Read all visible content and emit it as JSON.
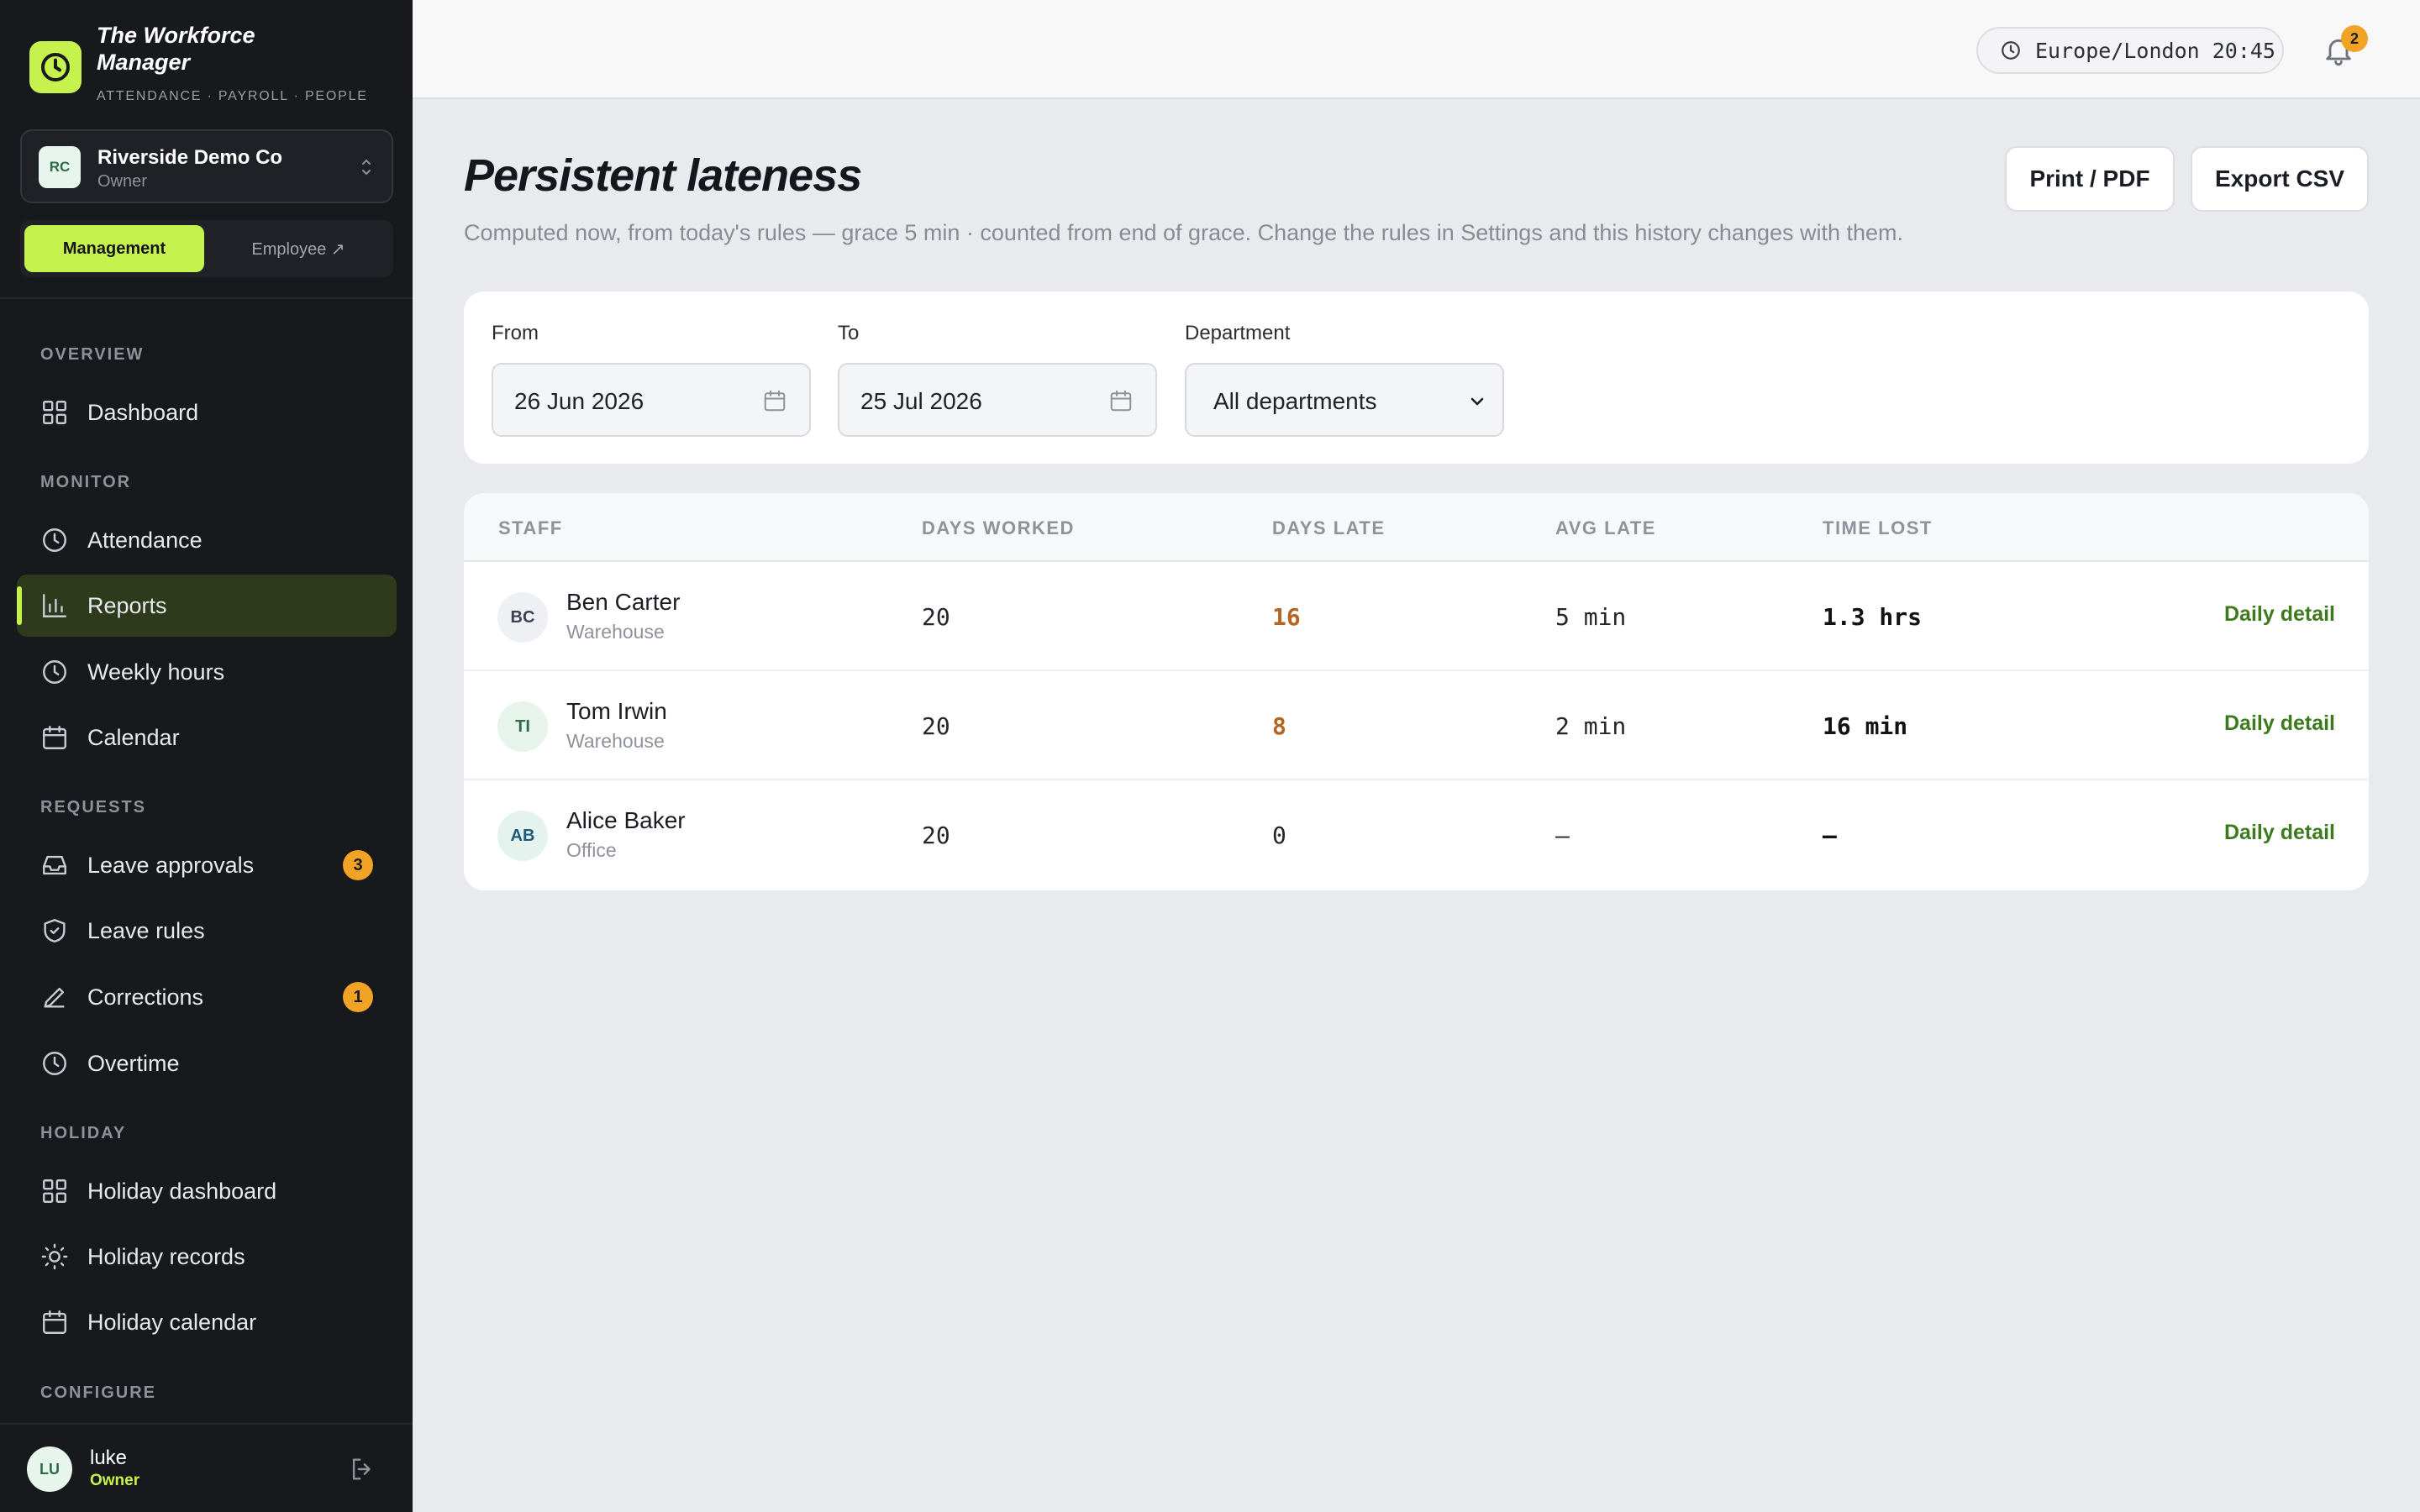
{
  "brand": {
    "title": "The Workforce Manager",
    "subtitle": "ATTENDANCE · PAYROLL · PEOPLE",
    "accent": "#c6f24e"
  },
  "org": {
    "initials": "RC",
    "name": "Riverside Demo Co",
    "role": "Owner"
  },
  "mode": {
    "management": "Management",
    "employee": "Employee ↗"
  },
  "nav": {
    "overview": "OVERVIEW",
    "dashboard": "Dashboard",
    "monitor": "MONITOR",
    "attendance": "Attendance",
    "reports": "Reports",
    "weekly_hours": "Weekly hours",
    "calendar": "Calendar",
    "requests": "REQUESTS",
    "leave_approvals": "Leave approvals",
    "leave_approvals_count": "3",
    "leave_rules": "Leave rules",
    "corrections": "Corrections",
    "corrections_count": "1",
    "overtime": "Overtime",
    "holiday": "HOLIDAY",
    "holiday_dashboard": "Holiday dashboard",
    "holiday_records": "Holiday records",
    "holiday_calendar": "Holiday calendar",
    "configure": "CONFIGURE"
  },
  "user": {
    "initials": "LU",
    "name": "luke",
    "role": "Owner"
  },
  "topbar": {
    "timezone": "Europe/London 20:45",
    "notification_count": "2"
  },
  "page": {
    "title": "Persistent lateness",
    "subtitle": "Computed now, from today's rules — grace 5 min · counted from end of grace. Change the rules in Settings and this history changes with them.",
    "print_label": "Print / PDF",
    "export_label": "Export CSV"
  },
  "filters": {
    "from_label": "From",
    "from_value": "26 Jun 2026",
    "to_label": "To",
    "to_value": "25 Jul 2026",
    "department_label": "Department",
    "department_value": "All departments"
  },
  "table": {
    "headers": {
      "staff": "STAFF",
      "days_worked": "DAYS WORKED",
      "days_late": "DAYS LATE",
      "avg_late": "AVG LATE",
      "time_lost": "TIME LOST"
    },
    "rows": [
      {
        "initials": "BC",
        "name": "Ben Carter",
        "dept": "Warehouse",
        "days_worked": "20",
        "days_late": "16",
        "avg_late": "5 min",
        "time_lost": "1.3 hrs",
        "action": "Daily detail"
      },
      {
        "initials": "TI",
        "name": "Tom Irwin",
        "dept": "Warehouse",
        "days_worked": "20",
        "days_late": "8",
        "avg_late": "2 min",
        "time_lost": "16 min",
        "action": "Daily detail"
      },
      {
        "initials": "AB",
        "name": "Alice Baker",
        "dept": "Office",
        "days_worked": "20",
        "days_late": "0",
        "avg_late": "–",
        "time_lost": "–",
        "action": "Daily detail"
      }
    ]
  },
  "colors": {
    "late_highlight": "#b5651d",
    "badge": "#f0a324",
    "link": "#3d7a1e"
  }
}
